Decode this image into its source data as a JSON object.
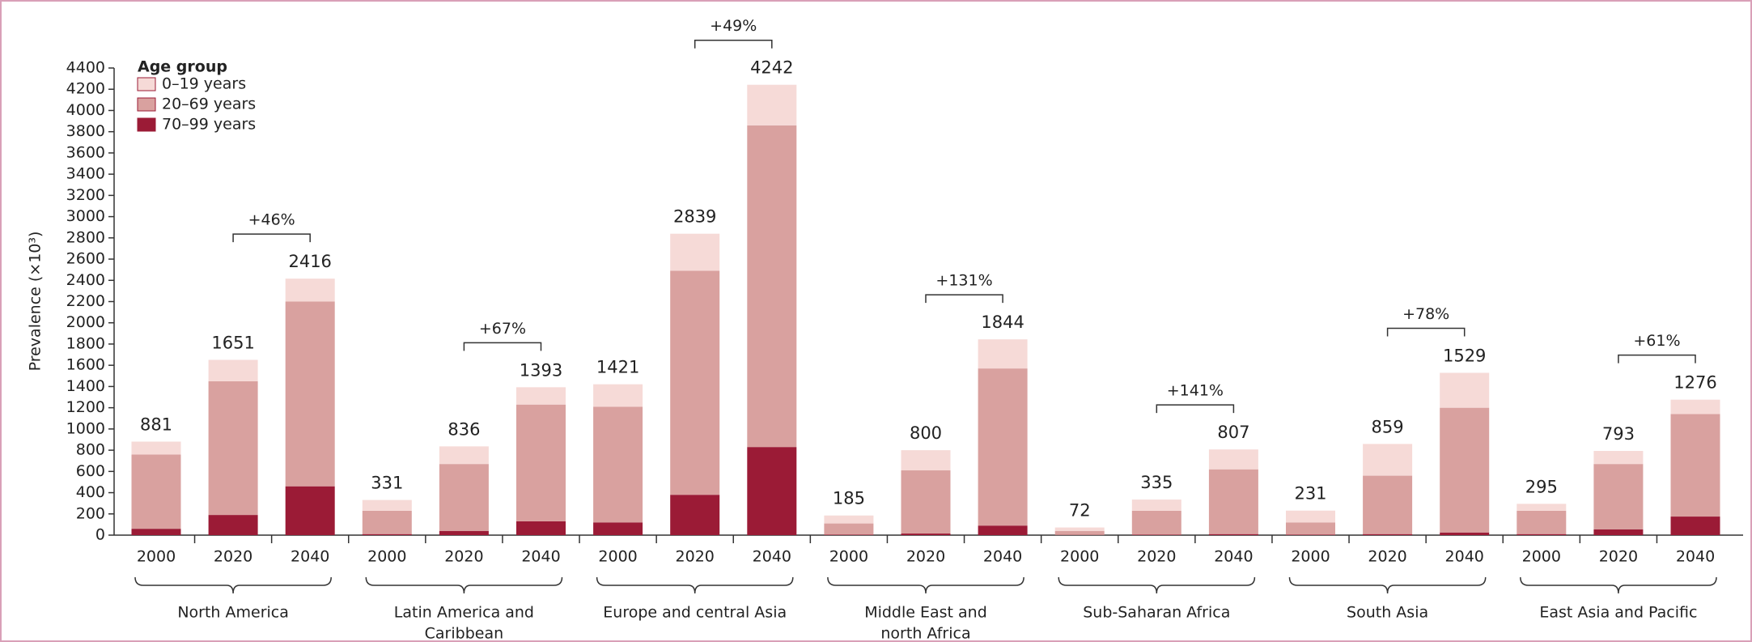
{
  "chart_data": {
    "type": "stacked_bar",
    "y_label": "Prevalence (×10³)",
    "legend_title": "Age group",
    "ylim": [
      0,
      4400
    ],
    "yticks": [
      0,
      200,
      400,
      600,
      800,
      1000,
      1200,
      1400,
      1600,
      1800,
      2000,
      2200,
      2400,
      2600,
      2800,
      3000,
      3200,
      3400,
      3600,
      3800,
      4000,
      4200,
      4400
    ],
    "categories": [
      "2000",
      "2020",
      "2040",
      "2000",
      "2020",
      "2040",
      "2000",
      "2020",
      "2040",
      "2000",
      "2020",
      "2040",
      "2000",
      "2020",
      "2040",
      "2000",
      "2020",
      "2040",
      "2000",
      "2020",
      "2040"
    ],
    "groups": [
      {
        "name_lines": [
          "North America"
        ],
        "change": "+46%"
      },
      {
        "name_lines": [
          "Latin America and",
          "Caribbean"
        ],
        "change": "+67%"
      },
      {
        "name_lines": [
          "Europe and central Asia"
        ],
        "change": "+49%"
      },
      {
        "name_lines": [
          "Middle East and",
          "north Africa"
        ],
        "change": "+131%"
      },
      {
        "name_lines": [
          "Sub-Saharan Africa"
        ],
        "change": "+141%"
      },
      {
        "name_lines": [
          "South Asia"
        ],
        "change": "+78%"
      },
      {
        "name_lines": [
          "East Asia and Pacific"
        ],
        "change": "+61%"
      }
    ],
    "series": [
      {
        "name": "70–99 years",
        "color": "#9b1b36",
        "values": [
          60,
          190,
          460,
          10,
          40,
          130,
          120,
          380,
          830,
          5,
          15,
          90,
          2,
          5,
          10,
          5,
          10,
          25,
          10,
          55,
          175
        ]
      },
      {
        "name": "20–69 years",
        "color": "#d9a19f",
        "values": [
          700,
          1260,
          1740,
          220,
          630,
          1100,
          1090,
          2110,
          3030,
          105,
          595,
          1480,
          38,
          225,
          610,
          115,
          550,
          1175,
          220,
          615,
          965
        ]
      },
      {
        "name": "0–19 years",
        "color": "#f6dad7",
        "values": [
          121,
          201,
          216,
          101,
          166,
          163,
          211,
          349,
          382,
          75,
          190,
          274,
          32,
          105,
          187,
          111,
          299,
          329,
          65,
          123,
          136
        ]
      }
    ],
    "legend_order": [
      2,
      1,
      0
    ],
    "totals": [
      881,
      1651,
      2416,
      331,
      836,
      1393,
      1421,
      2839,
      4242,
      185,
      800,
      1844,
      72,
      335,
      807,
      231,
      859,
      1529,
      295,
      793,
      1276
    ]
  }
}
